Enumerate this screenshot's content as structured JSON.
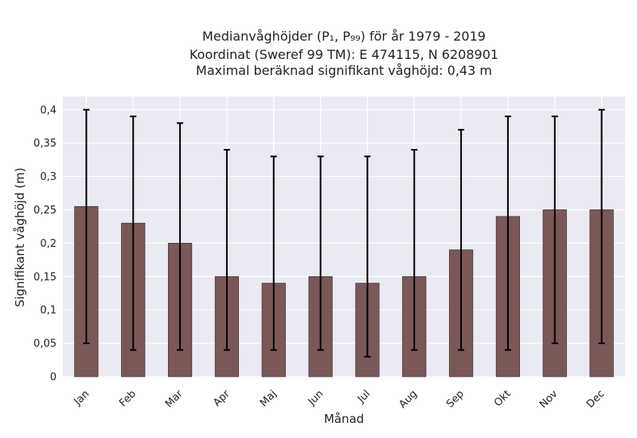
{
  "chart_data": {
    "type": "bar",
    "title_lines": [
      "Medianvåghöjder (P₁, P₉₉) för år 1979 - 2019",
      "Koordinat (Sweref 99 TM): E 474115, N 6208901",
      "Maximal beräknad signifikant våghöjd: 0,43 m"
    ],
    "xlabel": "Månad",
    "ylabel": "Signifikant våghöjd (m)",
    "categories": [
      "Jan",
      "Feb",
      "Mar",
      "Apr",
      "Maj",
      "Jun",
      "Jul",
      "Aug",
      "Sep",
      "Okt",
      "Nov",
      "Dec"
    ],
    "values": [
      0.255,
      0.23,
      0.2,
      0.15,
      0.14,
      0.15,
      0.14,
      0.15,
      0.19,
      0.24,
      0.25,
      0.25
    ],
    "error_low": [
      0.05,
      0.04,
      0.04,
      0.04,
      0.04,
      0.04,
      0.03,
      0.04,
      0.04,
      0.04,
      0.05,
      0.05
    ],
    "error_high": [
      0.4,
      0.39,
      0.38,
      0.34,
      0.33,
      0.33,
      0.33,
      0.34,
      0.37,
      0.39,
      0.39,
      0.4
    ],
    "ylim": [
      0,
      0.42
    ],
    "yticks": [
      0,
      0.05,
      0.1,
      0.15,
      0.2,
      0.25,
      0.3,
      0.35,
      0.4
    ],
    "ytick_labels": [
      "0",
      "0,05",
      "0,1",
      "0,15",
      "0,2",
      "0,25",
      "0,3",
      "0,35",
      "0,4"
    ],
    "grid": true,
    "colors": {
      "bar": "#7b5858",
      "bar_edge": "#4a3434",
      "error": "#000000",
      "plot_bg": "#eaeaf2",
      "grid": "#ffffff"
    }
  }
}
